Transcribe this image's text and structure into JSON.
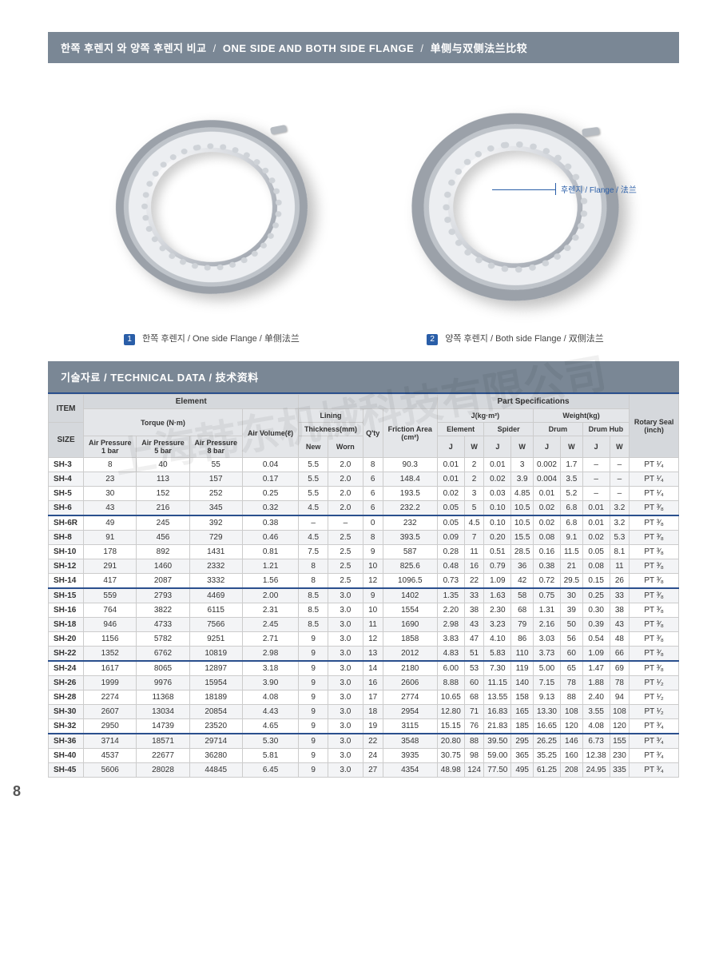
{
  "colors": {
    "header_bg": "#7a8795",
    "accent": "#2a4f8d",
    "link": "#2a5ea8",
    "th_bg": "#e4e6e9",
    "row_alt": "#f3f4f6"
  },
  "title_bar": {
    "ko": "한쪽 후렌지 와 양쪽 후렌지 비교",
    "en": "ONE SIDE AND BOTH SIDE FLANGE",
    "zh": "单侧与双侧法兰比较"
  },
  "callout": {
    "label": "후렌지 / Flange / 法兰"
  },
  "figures": {
    "left": {
      "idx": "1",
      "text": "한쪽 후렌지 / One side Flange / 单侧法兰"
    },
    "right": {
      "idx": "2",
      "text": "양쪽 후렌지 / Both side Flange / 双侧法兰"
    }
  },
  "section_bar": {
    "ko": "기술자료",
    "en": "TECHNICAL DATA",
    "zh": "技术资料"
  },
  "page_num": "8",
  "watermark": "上海韩东机械科技有限公司",
  "table": {
    "header": {
      "item": "ITEM",
      "size": "SIZE",
      "element": "Element",
      "part_specs": "Part Specifications",
      "torque": "Torque",
      "torque_unit": "(N·m)",
      "air_vol": "Air Volume",
      "air_vol_unit": "(ℓ)",
      "lining": "Lining",
      "thickness": "Thickness",
      "thickness_unit": "(mm)",
      "qty": "Q'ty",
      "friction": "Friction Area",
      "friction_unit": "(cm²)",
      "j_unit": "J(kg·m²)",
      "w_unit": "Weight(kg)",
      "el": "Element",
      "spider": "Spider",
      "drum": "Drum",
      "drum_hub": "Drum Hub",
      "rotary": "Rotary Seal",
      "rotary_unit": "(inch)",
      "ap": "Air Pressure",
      "bar1": "1 bar",
      "bar5": "5 bar",
      "bar8": "8 bar",
      "new": "New",
      "worn": "Worn",
      "J": "J",
      "W": "W"
    },
    "rows": [
      {
        "size": "SH-3",
        "t1": "8",
        "t5": "40",
        "t8": "55",
        "av": "0.04",
        "tn": "5.5",
        "tw": "2.0",
        "q": "8",
        "fa": "90.3",
        "ej": "0.01",
        "ew": "2",
        "sj": "0.01",
        "sw": "3",
        "dj": "0.002",
        "dw": "1.7",
        "hj": "–",
        "hw": "–",
        "rs": "PT ¹⁄₄"
      },
      {
        "size": "SH-4",
        "t1": "23",
        "t5": "113",
        "t8": "157",
        "av": "0.17",
        "tn": "5.5",
        "tw": "2.0",
        "q": "6",
        "fa": "148.4",
        "ej": "0.01",
        "ew": "2",
        "sj": "0.02",
        "sw": "3.9",
        "dj": "0.004",
        "dw": "3.5",
        "hj": "–",
        "hw": "–",
        "rs": "PT ¹⁄₄"
      },
      {
        "size": "SH-5",
        "t1": "30",
        "t5": "152",
        "t8": "252",
        "av": "0.25",
        "tn": "5.5",
        "tw": "2.0",
        "q": "6",
        "fa": "193.5",
        "ej": "0.02",
        "ew": "3",
        "sj": "0.03",
        "sw": "4.85",
        "dj": "0.01",
        "dw": "5.2",
        "hj": "–",
        "hw": "–",
        "rs": "PT ¹⁄₄"
      },
      {
        "size": "SH-6",
        "t1": "43",
        "t5": "216",
        "t8": "345",
        "av": "0.32",
        "tn": "4.5",
        "tw": "2.0",
        "q": "6",
        "fa": "232.2",
        "ej": "0.05",
        "ew": "5",
        "sj": "0.10",
        "sw": "10.5",
        "dj": "0.02",
        "dw": "6.8",
        "hj": "0.01",
        "hw": "3.2",
        "rs": "PT ³⁄₈"
      },
      {
        "size": "SH-6R",
        "t1": "49",
        "t5": "245",
        "t8": "392",
        "av": "0.38",
        "tn": "–",
        "tw": "–",
        "q": "0",
        "fa": "232",
        "ej": "0.05",
        "ew": "4.5",
        "sj": "0.10",
        "sw": "10.5",
        "dj": "0.02",
        "dw": "6.8",
        "hj": "0.01",
        "hw": "3.2",
        "rs": "PT ³⁄₈",
        "divider": true
      },
      {
        "size": "SH-8",
        "t1": "91",
        "t5": "456",
        "t8": "729",
        "av": "0.46",
        "tn": "4.5",
        "tw": "2.5",
        "q": "8",
        "fa": "393.5",
        "ej": "0.09",
        "ew": "7",
        "sj": "0.20",
        "sw": "15.5",
        "dj": "0.08",
        "dw": "9.1",
        "hj": "0.02",
        "hw": "5.3",
        "rs": "PT ³⁄₈"
      },
      {
        "size": "SH-10",
        "t1": "178",
        "t5": "892",
        "t8": "1431",
        "av": "0.81",
        "tn": "7.5",
        "tw": "2.5",
        "q": "9",
        "fa": "587",
        "ej": "0.28",
        "ew": "11",
        "sj": "0.51",
        "sw": "28.5",
        "dj": "0.16",
        "dw": "11.5",
        "hj": "0.05",
        "hw": "8.1",
        "rs": "PT ³⁄₈"
      },
      {
        "size": "SH-12",
        "t1": "291",
        "t5": "1460",
        "t8": "2332",
        "av": "1.21",
        "tn": "8",
        "tw": "2.5",
        "q": "10",
        "fa": "825.6",
        "ej": "0.48",
        "ew": "16",
        "sj": "0.79",
        "sw": "36",
        "dj": "0.38",
        "dw": "21",
        "hj": "0.08",
        "hw": "11",
        "rs": "PT ³⁄₈"
      },
      {
        "size": "SH-14",
        "t1": "417",
        "t5": "2087",
        "t8": "3332",
        "av": "1.56",
        "tn": "8",
        "tw": "2.5",
        "q": "12",
        "fa": "1096.5",
        "ej": "0.73",
        "ew": "22",
        "sj": "1.09",
        "sw": "42",
        "dj": "0.72",
        "dw": "29.5",
        "hj": "0.15",
        "hw": "26",
        "rs": "PT ³⁄₈"
      },
      {
        "size": "SH-15",
        "t1": "559",
        "t5": "2793",
        "t8": "4469",
        "av": "2.00",
        "tn": "8.5",
        "tw": "3.0",
        "q": "9",
        "fa": "1402",
        "ej": "1.35",
        "ew": "33",
        "sj": "1.63",
        "sw": "58",
        "dj": "0.75",
        "dw": "30",
        "hj": "0.25",
        "hw": "33",
        "rs": "PT ³⁄₈",
        "divider": true
      },
      {
        "size": "SH-16",
        "t1": "764",
        "t5": "3822",
        "t8": "6115",
        "av": "2.31",
        "tn": "8.5",
        "tw": "3.0",
        "q": "10",
        "fa": "1554",
        "ej": "2.20",
        "ew": "38",
        "sj": "2.30",
        "sw": "68",
        "dj": "1.31",
        "dw": "39",
        "hj": "0.30",
        "hw": "38",
        "rs": "PT ³⁄₈"
      },
      {
        "size": "SH-18",
        "t1": "946",
        "t5": "4733",
        "t8": "7566",
        "av": "2.45",
        "tn": "8.5",
        "tw": "3.0",
        "q": "11",
        "fa": "1690",
        "ej": "2.98",
        "ew": "43",
        "sj": "3.23",
        "sw": "79",
        "dj": "2.16",
        "dw": "50",
        "hj": "0.39",
        "hw": "43",
        "rs": "PT ³⁄₈"
      },
      {
        "size": "SH-20",
        "t1": "1156",
        "t5": "5782",
        "t8": "9251",
        "av": "2.71",
        "tn": "9",
        "tw": "3.0",
        "q": "12",
        "fa": "1858",
        "ej": "3.83",
        "ew": "47",
        "sj": "4.10",
        "sw": "86",
        "dj": "3.03",
        "dw": "56",
        "hj": "0.54",
        "hw": "48",
        "rs": "PT ³⁄₈"
      },
      {
        "size": "SH-22",
        "t1": "1352",
        "t5": "6762",
        "t8": "10819",
        "av": "2.98",
        "tn": "9",
        "tw": "3.0",
        "q": "13",
        "fa": "2012",
        "ej": "4.83",
        "ew": "51",
        "sj": "5.83",
        "sw": "110",
        "dj": "3.73",
        "dw": "60",
        "hj": "1.09",
        "hw": "66",
        "rs": "PT ³⁄₈"
      },
      {
        "size": "SH-24",
        "t1": "1617",
        "t5": "8065",
        "t8": "12897",
        "av": "3.18",
        "tn": "9",
        "tw": "3.0",
        "q": "14",
        "fa": "2180",
        "ej": "6.00",
        "ew": "53",
        "sj": "7.30",
        "sw": "119",
        "dj": "5.00",
        "dw": "65",
        "hj": "1.47",
        "hw": "69",
        "rs": "PT ³⁄₈",
        "divider": true
      },
      {
        "size": "SH-26",
        "t1": "1999",
        "t5": "9976",
        "t8": "15954",
        "av": "3.90",
        "tn": "9",
        "tw": "3.0",
        "q": "16",
        "fa": "2606",
        "ej": "8.88",
        "ew": "60",
        "sj": "11.15",
        "sw": "140",
        "dj": "7.15",
        "dw": "78",
        "hj": "1.88",
        "hw": "78",
        "rs": "PT ¹⁄₂"
      },
      {
        "size": "SH-28",
        "t1": "2274",
        "t5": "11368",
        "t8": "18189",
        "av": "4.08",
        "tn": "9",
        "tw": "3.0",
        "q": "17",
        "fa": "2774",
        "ej": "10.65",
        "ew": "68",
        "sj": "13.55",
        "sw": "158",
        "dj": "9.13",
        "dw": "88",
        "hj": "2.40",
        "hw": "94",
        "rs": "PT ¹⁄₂"
      },
      {
        "size": "SH-30",
        "t1": "2607",
        "t5": "13034",
        "t8": "20854",
        "av": "4.43",
        "tn": "9",
        "tw": "3.0",
        "q": "18",
        "fa": "2954",
        "ej": "12.80",
        "ew": "71",
        "sj": "16.83",
        "sw": "165",
        "dj": "13.30",
        "dw": "108",
        "hj": "3.55",
        "hw": "108",
        "rs": "PT ¹⁄₂"
      },
      {
        "size": "SH-32",
        "t1": "2950",
        "t5": "14739",
        "t8": "23520",
        "av": "4.65",
        "tn": "9",
        "tw": "3.0",
        "q": "19",
        "fa": "3115",
        "ej": "15.15",
        "ew": "76",
        "sj": "21.83",
        "sw": "185",
        "dj": "16.65",
        "dw": "120",
        "hj": "4.08",
        "hw": "120",
        "rs": "PT ³⁄₄"
      },
      {
        "size": "SH-36",
        "t1": "3714",
        "t5": "18571",
        "t8": "29714",
        "av": "5.30",
        "tn": "9",
        "tw": "3.0",
        "q": "22",
        "fa": "3548",
        "ej": "20.80",
        "ew": "88",
        "sj": "39.50",
        "sw": "295",
        "dj": "26.25",
        "dw": "146",
        "hj": "6.73",
        "hw": "155",
        "rs": "PT ³⁄₄",
        "divider": true
      },
      {
        "size": "SH-40",
        "t1": "4537",
        "t5": "22677",
        "t8": "36280",
        "av": "5.81",
        "tn": "9",
        "tw": "3.0",
        "q": "24",
        "fa": "3935",
        "ej": "30.75",
        "ew": "98",
        "sj": "59.00",
        "sw": "365",
        "dj": "35.25",
        "dw": "160",
        "hj": "12.38",
        "hw": "230",
        "rs": "PT ³⁄₄"
      },
      {
        "size": "SH-45",
        "t1": "5606",
        "t5": "28028",
        "t8": "44845",
        "av": "6.45",
        "tn": "9",
        "tw": "3.0",
        "q": "27",
        "fa": "4354",
        "ej": "48.98",
        "ew": "124",
        "sj": "77.50",
        "sw": "495",
        "dj": "61.25",
        "dw": "208",
        "hj": "24.95",
        "hw": "335",
        "rs": "PT ³⁄₄"
      }
    ]
  }
}
